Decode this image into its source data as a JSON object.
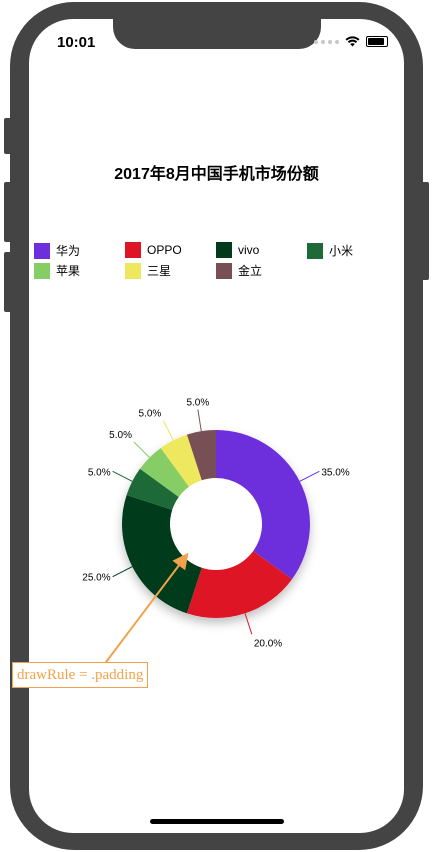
{
  "status_bar": {
    "time": "10:01"
  },
  "chart_data": {
    "type": "pie",
    "style": "donut",
    "title": "2017年8月中国手机市场份额",
    "legend_position": "top",
    "slices": [
      {
        "label": "华为",
        "value": 35.0,
        "value_label": "35.0%",
        "color": "#6d2fdc"
      },
      {
        "label": "OPPO",
        "value": 20.0,
        "value_label": "20.0%",
        "color": "#de1524"
      },
      {
        "label": "vivo",
        "value": 25.0,
        "value_label": "25.0%",
        "color": "#003c1c"
      },
      {
        "label": "小米",
        "value": 5.0,
        "value_label": "5.0%",
        "color": "#1e6938"
      },
      {
        "label": "苹果",
        "value": 5.0,
        "value_label": "5.0%",
        "color": "#86cd66"
      },
      {
        "label": "三星",
        "value": 5.0,
        "value_label": "5.0%",
        "color": "#ede85d"
      },
      {
        "label": "金立",
        "value": 5.0,
        "value_label": "5.0%",
        "color": "#784f54"
      }
    ]
  },
  "annotation": {
    "text": "drawRule = .padding",
    "color": "#f2a24a"
  }
}
